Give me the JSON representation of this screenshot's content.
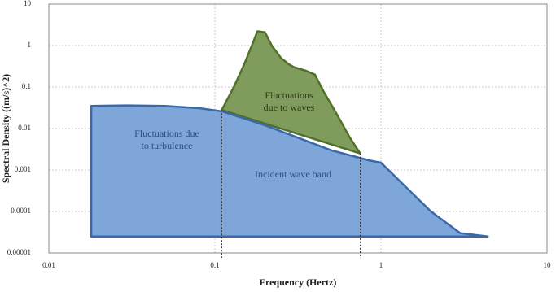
{
  "chart_data": {
    "type": "area",
    "xlabel": "Frequency (Hertz)",
    "ylabel": "Spectral Density ((m/s)^2)",
    "xscale": "log",
    "yscale": "log",
    "xlim": [
      0.01,
      10
    ],
    "ylim": [
      1e-05,
      10
    ],
    "xticks": [
      0.01,
      0.1,
      1,
      10
    ],
    "yticks": [
      1e-05,
      0.0001,
      0.001,
      0.01,
      0.1,
      1,
      10
    ],
    "grid": true,
    "annotations": [
      [
        "Fluctuations",
        "due to waves"
      ],
      [
        "Fluctuations due",
        "to turbulence"
      ],
      [
        "Incident wave band"
      ]
    ],
    "series": [
      {
        "color": "#809c5c",
        "edge": "#52702c",
        "x": [
          0.11,
          0.13,
          0.15,
          0.17,
          0.18,
          0.2,
          0.22,
          0.25,
          0.28,
          0.3,
          0.35,
          0.4,
          0.45,
          0.55,
          0.65,
          0.75
        ],
        "values": [
          0.028,
          0.1,
          0.35,
          1.2,
          2.2,
          2.1,
          1.0,
          0.5,
          0.35,
          0.3,
          0.25,
          0.2,
          0.08,
          0.02,
          0.006,
          0.0025
        ]
      },
      {
        "color": "#7ea6d8",
        "edge": "#3a68a8",
        "x": [
          0.018,
          0.018,
          0.03,
          0.05,
          0.08,
          0.11,
          0.2,
          0.5,
          0.85,
          1.0,
          2.0,
          3.0,
          4.4,
          4.4
        ],
        "values": [
          2.5e-05,
          0.035,
          0.036,
          0.035,
          0.031,
          0.026,
          0.012,
          0.003,
          0.0017,
          0.0015,
          0.0001,
          3e-05,
          2.5e-05,
          2.5e-05
        ]
      }
    ]
  }
}
